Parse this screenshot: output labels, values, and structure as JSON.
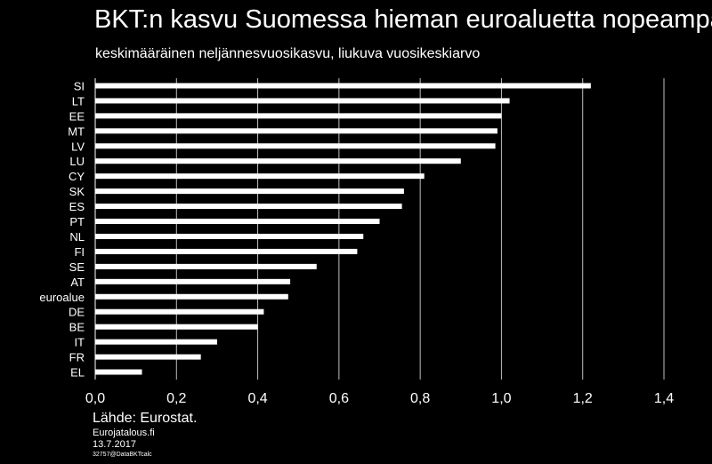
{
  "chart_data": {
    "type": "bar",
    "orientation": "horizontal",
    "title": "BKT:n kasvu Suomessa hieman euroaluetta nopeampaa",
    "subtitle": "keskimääräinen neljännesvuosikasvu,  liukuva vuosikeskiarvo",
    "categories": [
      "SI",
      "LT",
      "EE",
      "MT",
      "LV",
      "LU",
      "CY",
      "SK",
      "ES",
      "PT",
      "NL",
      "FI",
      "SE",
      "AT",
      "euroalue",
      "DE",
      "BE",
      "IT",
      "FR",
      "EL"
    ],
    "values": [
      1.22,
      1.02,
      1.0,
      0.99,
      0.985,
      0.9,
      0.81,
      0.76,
      0.755,
      0.7,
      0.66,
      0.645,
      0.545,
      0.48,
      0.475,
      0.415,
      0.4,
      0.3,
      0.26,
      0.115
    ],
    "xlim": [
      0,
      1.4
    ],
    "xticks": [
      "0,0",
      "0,2",
      "0,4",
      "0,6",
      "0,8",
      "1,0",
      "1,2",
      "1,4"
    ],
    "grid": "vertical",
    "bar_color": "#ffffff",
    "background_color": "#000000"
  },
  "footer": {
    "source": "Lähde: Eurostat.",
    "publisher": "Eurojatalous.fi",
    "date": "13.7.2017",
    "code": "32757@DataBKTcalc"
  }
}
